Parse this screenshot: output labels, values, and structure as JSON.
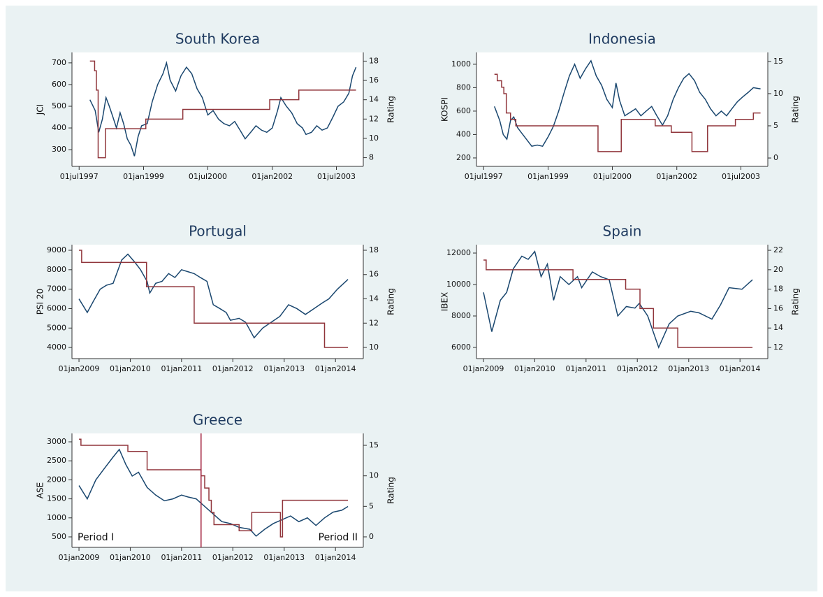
{
  "chart_data": [
    {
      "type": "line",
      "title": "South Korea",
      "ylabel": "JCI",
      "y2label": "Rating",
      "xlim": [
        "1997-05-01",
        "2004-02-15"
      ],
      "xticks": [
        {
          "value": "1997-07-01",
          "label": "01jul1997"
        },
        {
          "value": "1999-01-01",
          "label": "01jan1999"
        },
        {
          "value": "2000-07-01",
          "label": "01jul2000"
        },
        {
          "value": "2002-01-01",
          "label": "01jan2002"
        },
        {
          "value": "2003-07-01",
          "label": "01jul2003"
        }
      ],
      "ylim": [
        223,
        748
      ],
      "yticks": [
        300,
        400,
        500,
        600,
        700
      ],
      "y2lim": [
        7.1,
        18.9
      ],
      "y2ticks": [
        8,
        10,
        12,
        14,
        16,
        18
      ],
      "series": [
        {
          "color": "#1a476f",
          "x": [
            "1997-10-01",
            "1997-11-15",
            "1997-12-15",
            "1998-01-15",
            "1998-02-15",
            "1998-03-15",
            "1998-04-15",
            "1998-05-15",
            "1998-06-15",
            "1998-07-15",
            "1998-08-15",
            "1998-09-15",
            "1998-10-15",
            "1998-11-15",
            "1998-12-15",
            "1999-02-01",
            "1999-03-15",
            "1999-05-01",
            "1999-06-15",
            "1999-07-15",
            "1999-08-15",
            "1999-10-01",
            "1999-11-15",
            "2000-01-01",
            "2000-02-15",
            "2000-04-01",
            "2000-05-15",
            "2000-07-01",
            "2000-08-15",
            "2000-10-01",
            "2000-11-15",
            "2001-01-01",
            "2001-02-15",
            "2001-04-01",
            "2001-05-15",
            "2001-07-01",
            "2001-08-15",
            "2001-10-01",
            "2001-11-15",
            "2002-01-01",
            "2002-02-15",
            "2002-03-15",
            "2002-05-01",
            "2002-06-15",
            "2002-08-01",
            "2002-09-15",
            "2002-10-15",
            "2002-12-01",
            "2003-01-15",
            "2003-03-01",
            "2003-04-15",
            "2003-06-01",
            "2003-07-15",
            "2003-09-01",
            "2003-10-15",
            "2003-11-15",
            "2003-12-15"
          ],
          "values": [
            530,
            480,
            380,
            440,
            540,
            500,
            450,
            400,
            470,
            420,
            350,
            320,
            270,
            360,
            410,
            420,
            520,
            600,
            650,
            700,
            620,
            570,
            640,
            680,
            650,
            580,
            540,
            460,
            480,
            440,
            420,
            410,
            430,
            390,
            350,
            380,
            410,
            390,
            380,
            400,
            480,
            540,
            500,
            470,
            420,
            400,
            370,
            380,
            410,
            390,
            400,
            450,
            500,
            520,
            560,
            640,
            680
          ]
        },
        {
          "color": "#90353b",
          "axis": "y2",
          "step": true,
          "x": [
            "1997-10-01",
            "1997-11-10",
            "1997-11-25",
            "1997-12-10",
            "1998-02-10",
            "1999-01-20",
            "1999-12-01",
            "2001-12-10",
            "2002-08-15",
            "2003-12-15"
          ],
          "values": [
            18,
            17,
            15,
            8,
            11,
            12,
            13,
            14,
            15,
            15
          ]
        }
      ]
    },
    {
      "type": "line",
      "title": "Indonesia",
      "ylabel": "KOSPI",
      "y2label": "Rating",
      "xlim": [
        "1997-05-01",
        "2004-02-15"
      ],
      "xticks": [
        {
          "value": "1997-07-01",
          "label": "01jul1997"
        },
        {
          "value": "1999-01-01",
          "label": "01jan1999"
        },
        {
          "value": "2000-07-01",
          "label": "01jul2000"
        },
        {
          "value": "2002-01-01",
          "label": "01jan2002"
        },
        {
          "value": "2003-07-01",
          "label": "01jul2003"
        }
      ],
      "ylim": [
        128,
        1101
      ],
      "yticks": [
        200,
        400,
        600,
        800,
        1000
      ],
      "y2lim": [
        -1.3,
        16.4
      ],
      "y2ticks": [
        0,
        5,
        10,
        15
      ],
      "series": [
        {
          "color": "#1a476f",
          "x": [
            "1997-10-01",
            "1997-11-15",
            "1997-12-15",
            "1998-01-15",
            "1998-02-15",
            "1998-03-15",
            "1998-04-15",
            "1998-05-15",
            "1998-06-15",
            "1998-07-15",
            "1998-08-15",
            "1998-10-01",
            "1998-11-15",
            "1999-01-01",
            "1999-02-15",
            "1999-04-01",
            "1999-05-15",
            "1999-07-01",
            "1999-08-15",
            "1999-10-01",
            "1999-11-15",
            "2000-01-01",
            "2000-02-15",
            "2000-04-01",
            "2000-05-15",
            "2000-07-01",
            "2000-08-01",
            "2000-09-01",
            "2000-10-15",
            "2000-12-01",
            "2001-01-15",
            "2001-03-01",
            "2001-04-15",
            "2001-06-01",
            "2001-07-15",
            "2001-09-01",
            "2001-10-15",
            "2001-12-01",
            "2002-01-15",
            "2002-03-01",
            "2002-04-15",
            "2002-06-01",
            "2002-07-15",
            "2002-09-01",
            "2002-10-15",
            "2002-12-01",
            "2003-01-15",
            "2003-03-01",
            "2003-04-15",
            "2003-06-01",
            "2003-07-15",
            "2003-09-01",
            "2003-10-15",
            "2003-12-15"
          ],
          "values": [
            640,
            520,
            400,
            360,
            520,
            550,
            460,
            420,
            380,
            340,
            300,
            310,
            300,
            380,
            470,
            600,
            750,
            900,
            1000,
            880,
            960,
            1030,
            900,
            820,
            700,
            630,
            840,
            690,
            560,
            590,
            620,
            560,
            600,
            640,
            560,
            480,
            560,
            700,
            800,
            880,
            920,
            860,
            760,
            700,
            620,
            560,
            600,
            560,
            620,
            680,
            720,
            760,
            800,
            790
          ]
        },
        {
          "color": "#90353b",
          "axis": "y2",
          "step": true,
          "x": [
            "1997-10-01",
            "1997-10-25",
            "1997-12-01",
            "1997-12-20",
            "1998-01-10",
            "1998-02-15",
            "1998-04-01",
            "2000-03-01",
            "2000-09-15",
            "2001-07-01",
            "2001-11-15",
            "2002-05-10",
            "2002-09-20",
            "2003-05-15",
            "2003-10-15",
            "2003-12-15"
          ],
          "values": [
            13,
            12,
            11,
            10,
            7,
            6,
            5,
            1,
            6,
            5,
            4,
            1,
            5,
            6,
            7,
            7
          ]
        }
      ]
    },
    {
      "type": "line",
      "title": "Portugal",
      "ylabel": "PSI 20",
      "y2label": "Rating",
      "xlim": [
        "2008-11-12",
        "2014-07-18"
      ],
      "xticks": [
        {
          "value": "2009-01-01",
          "label": "01jan2009"
        },
        {
          "value": "2010-01-01",
          "label": "01jan2010"
        },
        {
          "value": "2011-01-01",
          "label": "01jan2011"
        },
        {
          "value": "2012-01-01",
          "label": "01jan2012"
        },
        {
          "value": "2013-01-01",
          "label": "01jan2013"
        },
        {
          "value": "2014-01-01",
          "label": "01jan2014"
        }
      ],
      "ylim": [
        3428,
        9288
      ],
      "yticks": [
        4000,
        5000,
        6000,
        7000,
        8000,
        9000
      ],
      "y2lim": [
        9.08,
        18.46
      ],
      "y2ticks": [
        10,
        12,
        14,
        16,
        18
      ],
      "series": [
        {
          "color": "#1a476f",
          "x": [
            "2009-01-01",
            "2009-03-01",
            "2009-04-15",
            "2009-06-01",
            "2009-07-15",
            "2009-09-01",
            "2009-11-01",
            "2009-12-15",
            "2010-02-01",
            "2010-03-15",
            "2010-05-01",
            "2010-05-20",
            "2010-07-01",
            "2010-08-15",
            "2010-10-01",
            "2010-11-15",
            "2011-01-01",
            "2011-02-15",
            "2011-04-01",
            "2011-05-15",
            "2011-07-01",
            "2011-08-15",
            "2011-10-01",
            "2011-11-15",
            "2011-12-15",
            "2012-02-15",
            "2012-04-01",
            "2012-06-01",
            "2012-08-01",
            "2012-10-01",
            "2012-12-01",
            "2013-02-01",
            "2013-04-01",
            "2013-06-01",
            "2013-08-01",
            "2013-10-01",
            "2013-11-15",
            "2014-01-15",
            "2014-03-31"
          ],
          "values": [
            6500,
            5800,
            6400,
            7000,
            7200,
            7300,
            8500,
            8800,
            8400,
            8000,
            7400,
            6800,
            7300,
            7400,
            7800,
            7600,
            8000,
            7900,
            7800,
            7600,
            7400,
            6200,
            6000,
            5800,
            5400,
            5500,
            5300,
            4500,
            5000,
            5300,
            5600,
            6200,
            6000,
            5700,
            6000,
            6300,
            6500,
            7000,
            7500
          ]
        },
        {
          "color": "#90353b",
          "axis": "y2",
          "step": true,
          "x": [
            "2009-01-01",
            "2009-01-20",
            "2010-04-27",
            "2011-04-01",
            "2013-10-15",
            "2014-03-31"
          ],
          "values": [
            18,
            17,
            15,
            12,
            10,
            10
          ]
        }
      ]
    },
    {
      "type": "line",
      "title": "Spain",
      "ylabel": "IBEX",
      "y2label": "Rating",
      "xlim": [
        "2008-11-12",
        "2014-07-18"
      ],
      "xticks": [
        {
          "value": "2009-01-01",
          "label": "01jan2009"
        },
        {
          "value": "2010-01-01",
          "label": "01jan2010"
        },
        {
          "value": "2011-01-01",
          "label": "01jan2011"
        },
        {
          "value": "2012-01-01",
          "label": "01jan2012"
        },
        {
          "value": "2013-01-01",
          "label": "01jan2013"
        },
        {
          "value": "2014-01-01",
          "label": "01jan2014"
        }
      ],
      "ylim": [
        5289,
        12533
      ],
      "yticks": [
        6000,
        8000,
        10000,
        12000
      ],
      "y2lim": [
        10.85,
        22.58
      ],
      "y2ticks": [
        12,
        14,
        16,
        18,
        20,
        22
      ],
      "series": [
        {
          "color": "#1a476f",
          "x": [
            "2009-01-01",
            "2009-03-01",
            "2009-05-01",
            "2009-06-15",
            "2009-08-01",
            "2009-10-01",
            "2009-11-15",
            "2010-01-01",
            "2010-02-15",
            "2010-04-01",
            "2010-05-15",
            "2010-07-01",
            "2010-09-01",
            "2010-11-01",
            "2010-12-01",
            "2011-02-15",
            "2011-04-15",
            "2011-06-15",
            "2011-08-15",
            "2011-10-15",
            "2011-12-15",
            "2012-01-15",
            "2012-03-15",
            "2012-06-01",
            "2012-08-15",
            "2012-10-15",
            "2013-01-15",
            "2013-03-15",
            "2013-06-15",
            "2013-08-15",
            "2013-10-15",
            "2014-01-15",
            "2014-03-31"
          ],
          "values": [
            9500,
            7000,
            9000,
            9500,
            11000,
            11800,
            11600,
            12100,
            10500,
            11300,
            9000,
            10500,
            10000,
            10500,
            9800,
            10800,
            10500,
            10300,
            8000,
            8600,
            8500,
            8800,
            8000,
            6000,
            7500,
            8000,
            8300,
            8200,
            7800,
            8700,
            9800,
            9700,
            10300
          ]
        },
        {
          "color": "#90353b",
          "axis": "y2",
          "step": true,
          "x": [
            "2009-01-01",
            "2009-01-20",
            "2010-09-30",
            "2011-10-10",
            "2012-01-20",
            "2012-04-25",
            "2012-10-15",
            "2014-03-31"
          ],
          "values": [
            21,
            20,
            19,
            18,
            16,
            14,
            12,
            12
          ]
        }
      ]
    },
    {
      "type": "line",
      "title": "Greece",
      "ylabel": "ASE",
      "y2label": "Rating",
      "xlim": [
        "2008-11-12",
        "2014-07-18"
      ],
      "xticks": [
        {
          "value": "2009-01-01",
          "label": "01jan2009"
        },
        {
          "value": "2010-01-01",
          "label": "01jan2010"
        },
        {
          "value": "2011-01-01",
          "label": "01jan2011"
        },
        {
          "value": "2012-01-01",
          "label": "01jan2012"
        },
        {
          "value": "2013-01-01",
          "label": "01jan2013"
        },
        {
          "value": "2014-01-01",
          "label": "01jan2014"
        }
      ],
      "ylim": [
        224,
        3221
      ],
      "yticks": [
        500,
        1000,
        1500,
        2000,
        2500,
        3000
      ],
      "y2lim": [
        -1.72,
        16.95
      ],
      "y2ticks": [
        0,
        5,
        10,
        15
      ],
      "vline": "2011-05-20",
      "vline_color": "#a0203c",
      "annotations": [
        "Period I",
        "Period II"
      ],
      "series": [
        {
          "color": "#1a476f",
          "x": [
            "2009-01-01",
            "2009-03-01",
            "2009-05-01",
            "2009-07-01",
            "2009-09-01",
            "2009-10-15",
            "2009-12-01",
            "2010-01-15",
            "2010-03-01",
            "2010-05-01",
            "2010-07-01",
            "2010-09-01",
            "2010-11-01",
            "2011-01-01",
            "2011-02-15",
            "2011-04-15",
            "2011-06-15",
            "2011-08-15",
            "2011-10-15",
            "2011-12-15",
            "2012-02-15",
            "2012-05-01",
            "2012-06-15",
            "2012-08-15",
            "2012-10-15",
            "2012-12-15",
            "2013-02-15",
            "2013-04-15",
            "2013-06-15",
            "2013-08-15",
            "2013-10-15",
            "2013-12-15",
            "2014-02-15",
            "2014-03-31"
          ],
          "values": [
            1850,
            1500,
            2000,
            2300,
            2600,
            2800,
            2400,
            2100,
            2200,
            1800,
            1600,
            1450,
            1500,
            1600,
            1550,
            1500,
            1300,
            1100,
            900,
            850,
            750,
            700,
            520,
            700,
            850,
            950,
            1050,
            900,
            1000,
            800,
            1000,
            1150,
            1200,
            1300
          ]
        },
        {
          "color": "#90353b",
          "axis": "y2",
          "step": true,
          "x": [
            "2009-01-01",
            "2009-01-15",
            "2009-12-15",
            "2010-05-01",
            "2011-05-20",
            "2011-06-15",
            "2011-07-15",
            "2011-08-01",
            "2011-08-20",
            "2012-02-15",
            "2012-05-15",
            "2012-12-05",
            "2012-12-20",
            "2014-03-31"
          ],
          "values": [
            16,
            15,
            14,
            11,
            10,
            8,
            6,
            4,
            2,
            1,
            4,
            0,
            6,
            6
          ]
        }
      ]
    }
  ]
}
